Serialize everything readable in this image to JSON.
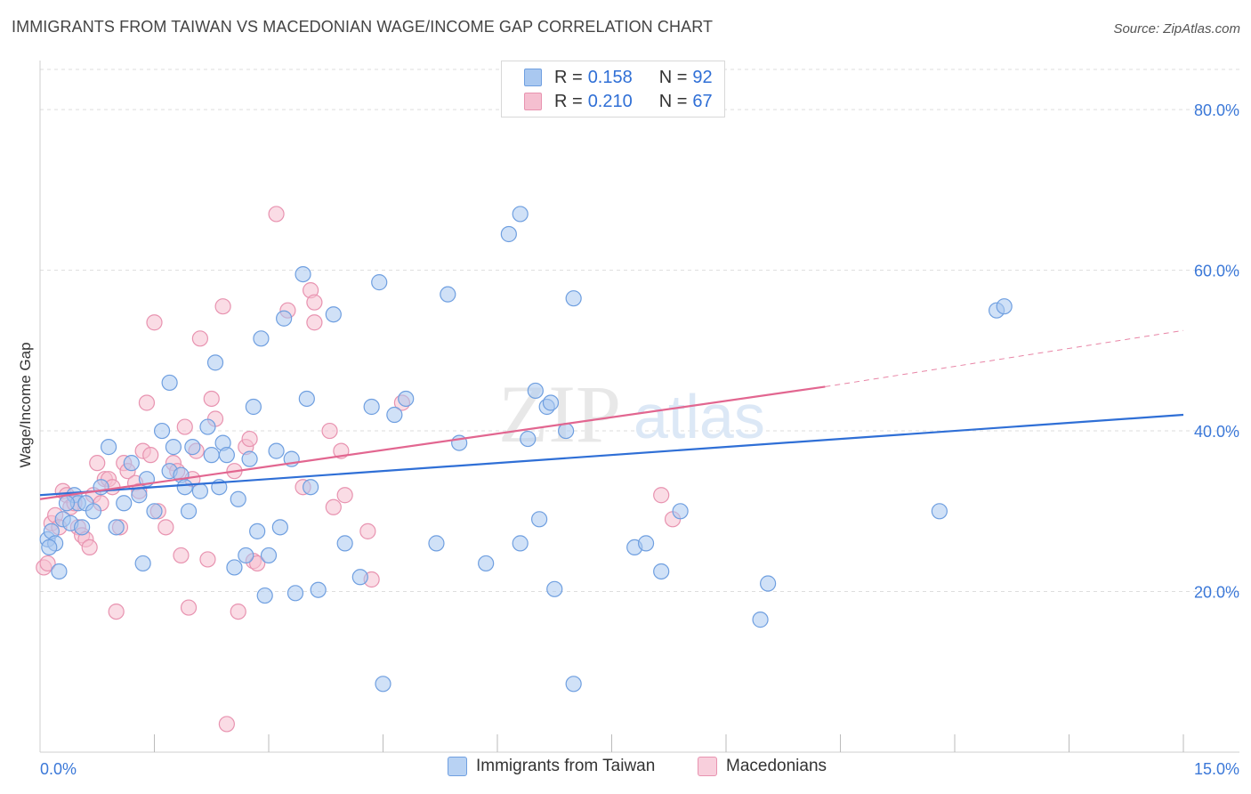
{
  "title": "IMMIGRANTS FROM TAIWAN VS MACEDONIAN WAGE/INCOME GAP CORRELATION CHART",
  "source": "Source: ZipAtlas.com",
  "watermark": {
    "zip": "ZIP",
    "atlas": "atlas"
  },
  "legend": {
    "rows": [
      {
        "r_label": "R =",
        "r_value": "0.158",
        "n_label": "N =",
        "n_value": "92"
      },
      {
        "r_label": "R =",
        "r_value": "0.210",
        "n_label": "N =",
        "n_value": "67"
      }
    ]
  },
  "bottom_legend": {
    "series1": "Immigrants from Taiwan",
    "series2": "Macedonians"
  },
  "colors": {
    "blue_fill": "#a9c8f0",
    "blue_stroke": "#6f9fe0",
    "blue_line": "#2f6fd6",
    "pink_fill": "#f5bfd0",
    "pink_stroke": "#e893b0",
    "pink_line": "#e26690",
    "tick_label": "#3b78d8",
    "grid": "#dddddd"
  },
  "chart_data": {
    "type": "scatter",
    "title": "IMMIGRANTS FROM TAIWAN VS MACEDONIAN WAGE/INCOME GAP CORRELATION CHART",
    "xlabel": "",
    "ylabel": "Wage/Income Gap",
    "xlim": [
      0,
      15
    ],
    "ylim": [
      0,
      85
    ],
    "x_tick_labels": [
      "0.0%",
      "15.0%"
    ],
    "y_ticks": [
      20,
      40,
      60,
      80
    ],
    "y_tick_labels": [
      "20.0%",
      "40.0%",
      "60.0%",
      "80.0%"
    ],
    "grid": true,
    "legend_position": "top-center",
    "series": [
      {
        "name": "Immigrants from Taiwan",
        "R": 0.158,
        "N": 92,
        "trend": {
          "x": [
            0,
            15
          ],
          "y": [
            32.0,
            42.0
          ]
        },
        "points": [
          [
            0.1,
            26.5
          ],
          [
            0.15,
            27.5
          ],
          [
            0.2,
            26
          ],
          [
            0.25,
            22.5
          ],
          [
            0.3,
            29
          ],
          [
            0.4,
            28.5
          ],
          [
            0.45,
            32
          ],
          [
            0.5,
            31
          ],
          [
            0.55,
            28
          ],
          [
            0.6,
            31
          ],
          [
            0.7,
            30
          ],
          [
            0.8,
            33
          ],
          [
            0.9,
            38
          ],
          [
            1.0,
            28
          ],
          [
            1.1,
            31
          ],
          [
            1.2,
            36
          ],
          [
            1.3,
            32
          ],
          [
            1.35,
            23.5
          ],
          [
            1.4,
            34
          ],
          [
            1.5,
            30
          ],
          [
            1.6,
            40
          ],
          [
            1.7,
            35
          ],
          [
            1.75,
            38
          ],
          [
            1.7,
            46
          ],
          [
            1.85,
            34.5
          ],
          [
            1.9,
            33
          ],
          [
            1.95,
            30
          ],
          [
            2.0,
            38
          ],
          [
            2.1,
            32.5
          ],
          [
            2.2,
            40.5
          ],
          [
            2.25,
            37
          ],
          [
            2.3,
            48.5
          ],
          [
            2.35,
            33
          ],
          [
            2.4,
            38.5
          ],
          [
            2.45,
            37
          ],
          [
            2.55,
            23
          ],
          [
            2.6,
            31.5
          ],
          [
            2.7,
            24.5
          ],
          [
            2.75,
            36.5
          ],
          [
            2.8,
            43
          ],
          [
            2.85,
            27.5
          ],
          [
            2.9,
            51.5
          ],
          [
            2.95,
            19.5
          ],
          [
            3.0,
            24.5
          ],
          [
            3.1,
            37.5
          ],
          [
            3.15,
            28
          ],
          [
            3.2,
            54
          ],
          [
            3.3,
            36.5
          ],
          [
            3.35,
            19.8
          ],
          [
            3.45,
            59.5
          ],
          [
            3.5,
            44
          ],
          [
            3.55,
            33
          ],
          [
            3.65,
            20.2
          ],
          [
            3.85,
            54.5
          ],
          [
            4.0,
            26
          ],
          [
            4.2,
            21.8
          ],
          [
            4.35,
            43
          ],
          [
            4.45,
            58.5
          ],
          [
            4.5,
            8.5
          ],
          [
            4.65,
            42
          ],
          [
            4.8,
            44
          ],
          [
            5.2,
            26
          ],
          [
            5.35,
            57
          ],
          [
            5.5,
            38.5
          ],
          [
            5.85,
            23.5
          ],
          [
            6.15,
            64.5
          ],
          [
            6.3,
            26
          ],
          [
            6.3,
            67
          ],
          [
            6.4,
            39
          ],
          [
            6.5,
            45
          ],
          [
            6.55,
            29
          ],
          [
            6.65,
            43
          ],
          [
            6.7,
            43.5
          ],
          [
            6.75,
            20.3
          ],
          [
            6.9,
            40
          ],
          [
            7.0,
            8.5
          ],
          [
            7.0,
            56.5
          ],
          [
            7.8,
            25.5
          ],
          [
            7.95,
            26
          ],
          [
            8.15,
            22.5
          ],
          [
            8.4,
            30
          ],
          [
            9.45,
            16.5
          ],
          [
            9.55,
            21
          ],
          [
            11.8,
            30
          ],
          [
            12.55,
            55
          ],
          [
            12.65,
            55.5
          ],
          [
            0.12,
            25.5
          ],
          [
            0.35,
            31
          ]
        ]
      },
      {
        "name": "Macedonians",
        "R": 0.21,
        "N": 67,
        "trend": {
          "x": [
            0,
            10.3
          ],
          "y": [
            31.5,
            45.5
          ]
        },
        "trend_dashed": {
          "x": [
            10.3,
            15
          ],
          "y": [
            45.5,
            52.5
          ]
        },
        "points": [
          [
            0.05,
            23
          ],
          [
            0.1,
            23.5
          ],
          [
            0.15,
            28.5
          ],
          [
            0.2,
            29.5
          ],
          [
            0.25,
            28
          ],
          [
            0.3,
            32.5
          ],
          [
            0.35,
            32
          ],
          [
            0.4,
            30.5
          ],
          [
            0.45,
            31
          ],
          [
            0.5,
            28
          ],
          [
            0.55,
            27
          ],
          [
            0.6,
            26.5
          ],
          [
            0.65,
            25.5
          ],
          [
            0.7,
            32
          ],
          [
            0.75,
            36
          ],
          [
            0.8,
            31
          ],
          [
            0.85,
            34
          ],
          [
            0.9,
            34
          ],
          [
            0.95,
            33
          ],
          [
            1.0,
            17.5
          ],
          [
            1.05,
            28
          ],
          [
            1.1,
            36
          ],
          [
            1.15,
            35
          ],
          [
            1.25,
            33.5
          ],
          [
            1.3,
            32.5
          ],
          [
            1.35,
            37.5
          ],
          [
            1.4,
            43.5
          ],
          [
            1.45,
            37
          ],
          [
            1.5,
            53.5
          ],
          [
            1.55,
            30
          ],
          [
            1.65,
            28
          ],
          [
            1.75,
            36
          ],
          [
            1.8,
            35
          ],
          [
            1.85,
            24.5
          ],
          [
            1.9,
            40.5
          ],
          [
            1.95,
            18
          ],
          [
            2.0,
            34
          ],
          [
            2.05,
            37.5
          ],
          [
            2.1,
            51.5
          ],
          [
            2.2,
            24
          ],
          [
            2.25,
            44
          ],
          [
            2.3,
            41.5
          ],
          [
            2.4,
            55.5
          ],
          [
            2.45,
            3.5
          ],
          [
            2.55,
            35
          ],
          [
            2.6,
            17.5
          ],
          [
            2.7,
            38
          ],
          [
            2.75,
            39
          ],
          [
            2.8,
            23.8
          ],
          [
            2.85,
            23.5
          ],
          [
            3.1,
            67
          ],
          [
            3.25,
            55
          ],
          [
            3.45,
            33
          ],
          [
            3.55,
            57.5
          ],
          [
            3.6,
            56
          ],
          [
            3.6,
            53.5
          ],
          [
            3.8,
            40
          ],
          [
            3.85,
            30.5
          ],
          [
            3.95,
            37.5
          ],
          [
            4.0,
            32
          ],
          [
            4.3,
            27.5
          ],
          [
            4.35,
            21.5
          ],
          [
            4.75,
            43.5
          ],
          [
            8.15,
            32
          ],
          [
            8.3,
            29
          ]
        ]
      }
    ]
  }
}
